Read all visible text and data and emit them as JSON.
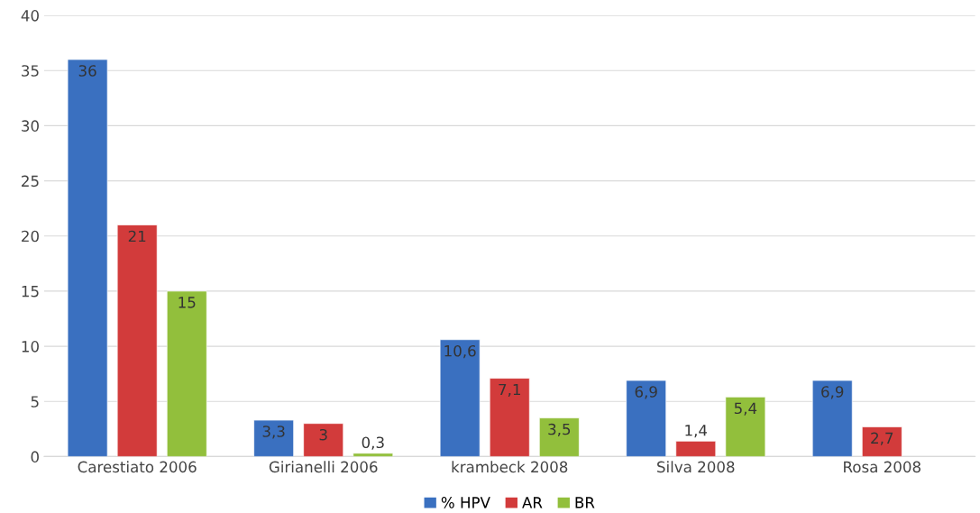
{
  "chart_data": {
    "type": "bar",
    "categories": [
      "Carestiato 2006",
      "Girianelli 2006",
      "krambeck 2008",
      "Silva 2008",
      "Rosa 2008"
    ],
    "series": [
      {
        "name": "% HPV",
        "color": "#3a70c0",
        "values": [
          36,
          3.3,
          10.6,
          6.9,
          6.9
        ],
        "value_labels": [
          "36",
          "3,3",
          "10,6",
          "6,9",
          "6,9"
        ]
      },
      {
        "name": "AR",
        "color": "#d23b3b",
        "values": [
          21,
          3,
          7.1,
          1.4,
          2.7
        ],
        "value_labels": [
          "21",
          "3",
          "7,1",
          "1,4",
          "2,7"
        ]
      },
      {
        "name": "BR",
        "color": "#92bf3c",
        "values": [
          15,
          0.3,
          3.5,
          5.4,
          null
        ],
        "value_labels": [
          "15",
          "0,3",
          "3,5",
          "5,4",
          null
        ]
      }
    ],
    "ylim": [
      0,
      40
    ],
    "yticks": [
      0,
      5,
      10,
      15,
      20,
      25,
      30,
      35,
      40
    ],
    "grid": "y",
    "legend": "bottom"
  }
}
